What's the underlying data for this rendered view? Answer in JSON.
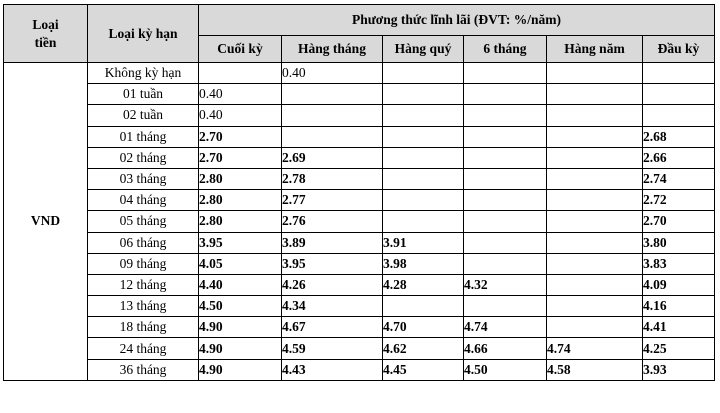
{
  "header": {
    "loai_tien_line1": "Loại",
    "loai_tien_line2": "tiền",
    "loai_ky_han": "Loại kỳ hạn",
    "phuong_thuc": "Phương thức lĩnh lãi (ĐVT: %/năm)",
    "columns": [
      "Cuối kỳ",
      "Hàng tháng",
      "Hàng quý",
      "6 tháng",
      "Hàng năm",
      "Đầu kỳ"
    ]
  },
  "currency": "VND",
  "rows": [
    {
      "term": "Không kỳ hạn",
      "cuoi_ky": "",
      "hang_thang": "0.40",
      "hang_quy": "",
      "sau_thang": "",
      "hang_nam": "",
      "dau_ky": ""
    },
    {
      "term": "01 tuần",
      "cuoi_ky": "0.40",
      "hang_thang": "",
      "hang_quy": "",
      "sau_thang": "",
      "hang_nam": "",
      "dau_ky": ""
    },
    {
      "term": "02 tuần",
      "cuoi_ky": "0.40",
      "hang_thang": "",
      "hang_quy": "",
      "sau_thang": "",
      "hang_nam": "",
      "dau_ky": ""
    },
    {
      "term": "01 tháng",
      "cuoi_ky": "2.70",
      "hang_thang": "",
      "hang_quy": "",
      "sau_thang": "",
      "hang_nam": "",
      "dau_ky": "2.68"
    },
    {
      "term": "02 tháng",
      "cuoi_ky": "2.70",
      "hang_thang": "2.69",
      "hang_quy": "",
      "sau_thang": "",
      "hang_nam": "",
      "dau_ky": "2.66"
    },
    {
      "term": "03 tháng",
      "cuoi_ky": "2.80",
      "hang_thang": "2.78",
      "hang_quy": "",
      "sau_thang": "",
      "hang_nam": "",
      "dau_ky": "2.74"
    },
    {
      "term": "04 tháng",
      "cuoi_ky": "2.80",
      "hang_thang": "2.77",
      "hang_quy": "",
      "sau_thang": "",
      "hang_nam": "",
      "dau_ky": "2.72"
    },
    {
      "term": "05 tháng",
      "cuoi_ky": "2.80",
      "hang_thang": "2.76",
      "hang_quy": "",
      "sau_thang": "",
      "hang_nam": "",
      "dau_ky": "2.70"
    },
    {
      "term": "06 tháng",
      "cuoi_ky": "3.95",
      "hang_thang": "3.89",
      "hang_quy": "3.91",
      "sau_thang": "",
      "hang_nam": "",
      "dau_ky": "3.80"
    },
    {
      "term": "09 tháng",
      "cuoi_ky": "4.05",
      "hang_thang": "3.95",
      "hang_quy": "3.98",
      "sau_thang": "",
      "hang_nam": "",
      "dau_ky": "3.83"
    },
    {
      "term": "12 tháng",
      "cuoi_ky": "4.40",
      "hang_thang": "4.26",
      "hang_quy": "4.28",
      "sau_thang": "4.32",
      "hang_nam": "",
      "dau_ky": "4.09"
    },
    {
      "term": "13 tháng",
      "cuoi_ky": "4.50",
      "hang_thang": "4.34",
      "hang_quy": "",
      "sau_thang": "",
      "hang_nam": "",
      "dau_ky": "4.16"
    },
    {
      "term": "18 tháng",
      "cuoi_ky": "4.90",
      "hang_thang": "4.67",
      "hang_quy": "4.70",
      "sau_thang": "4.74",
      "hang_nam": "",
      "dau_ky": "4.41"
    },
    {
      "term": "24 tháng",
      "cuoi_ky": "4.90",
      "hang_thang": "4.59",
      "hang_quy": "4.62",
      "sau_thang": "4.66",
      "hang_nam": "4.74",
      "dau_ky": "4.25"
    },
    {
      "term": "36 tháng",
      "cuoi_ky": "4.90",
      "hang_thang": "4.43",
      "hang_quy": "4.45",
      "sau_thang": "4.50",
      "hang_nam": "4.58",
      "dau_ky": "3.93"
    }
  ]
}
